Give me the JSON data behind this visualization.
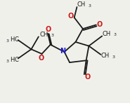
{
  "bg_color": "#f0f0eb",
  "line_color": "#1a1a1a",
  "nitrogen_color": "#1a1acc",
  "oxygen_color": "#cc1a1a",
  "line_width": 1.3,
  "figsize": [
    1.85,
    1.47
  ],
  "dpi": 100,
  "xlim": [
    0,
    9.5
  ],
  "ylim": [
    0,
    7.5
  ]
}
